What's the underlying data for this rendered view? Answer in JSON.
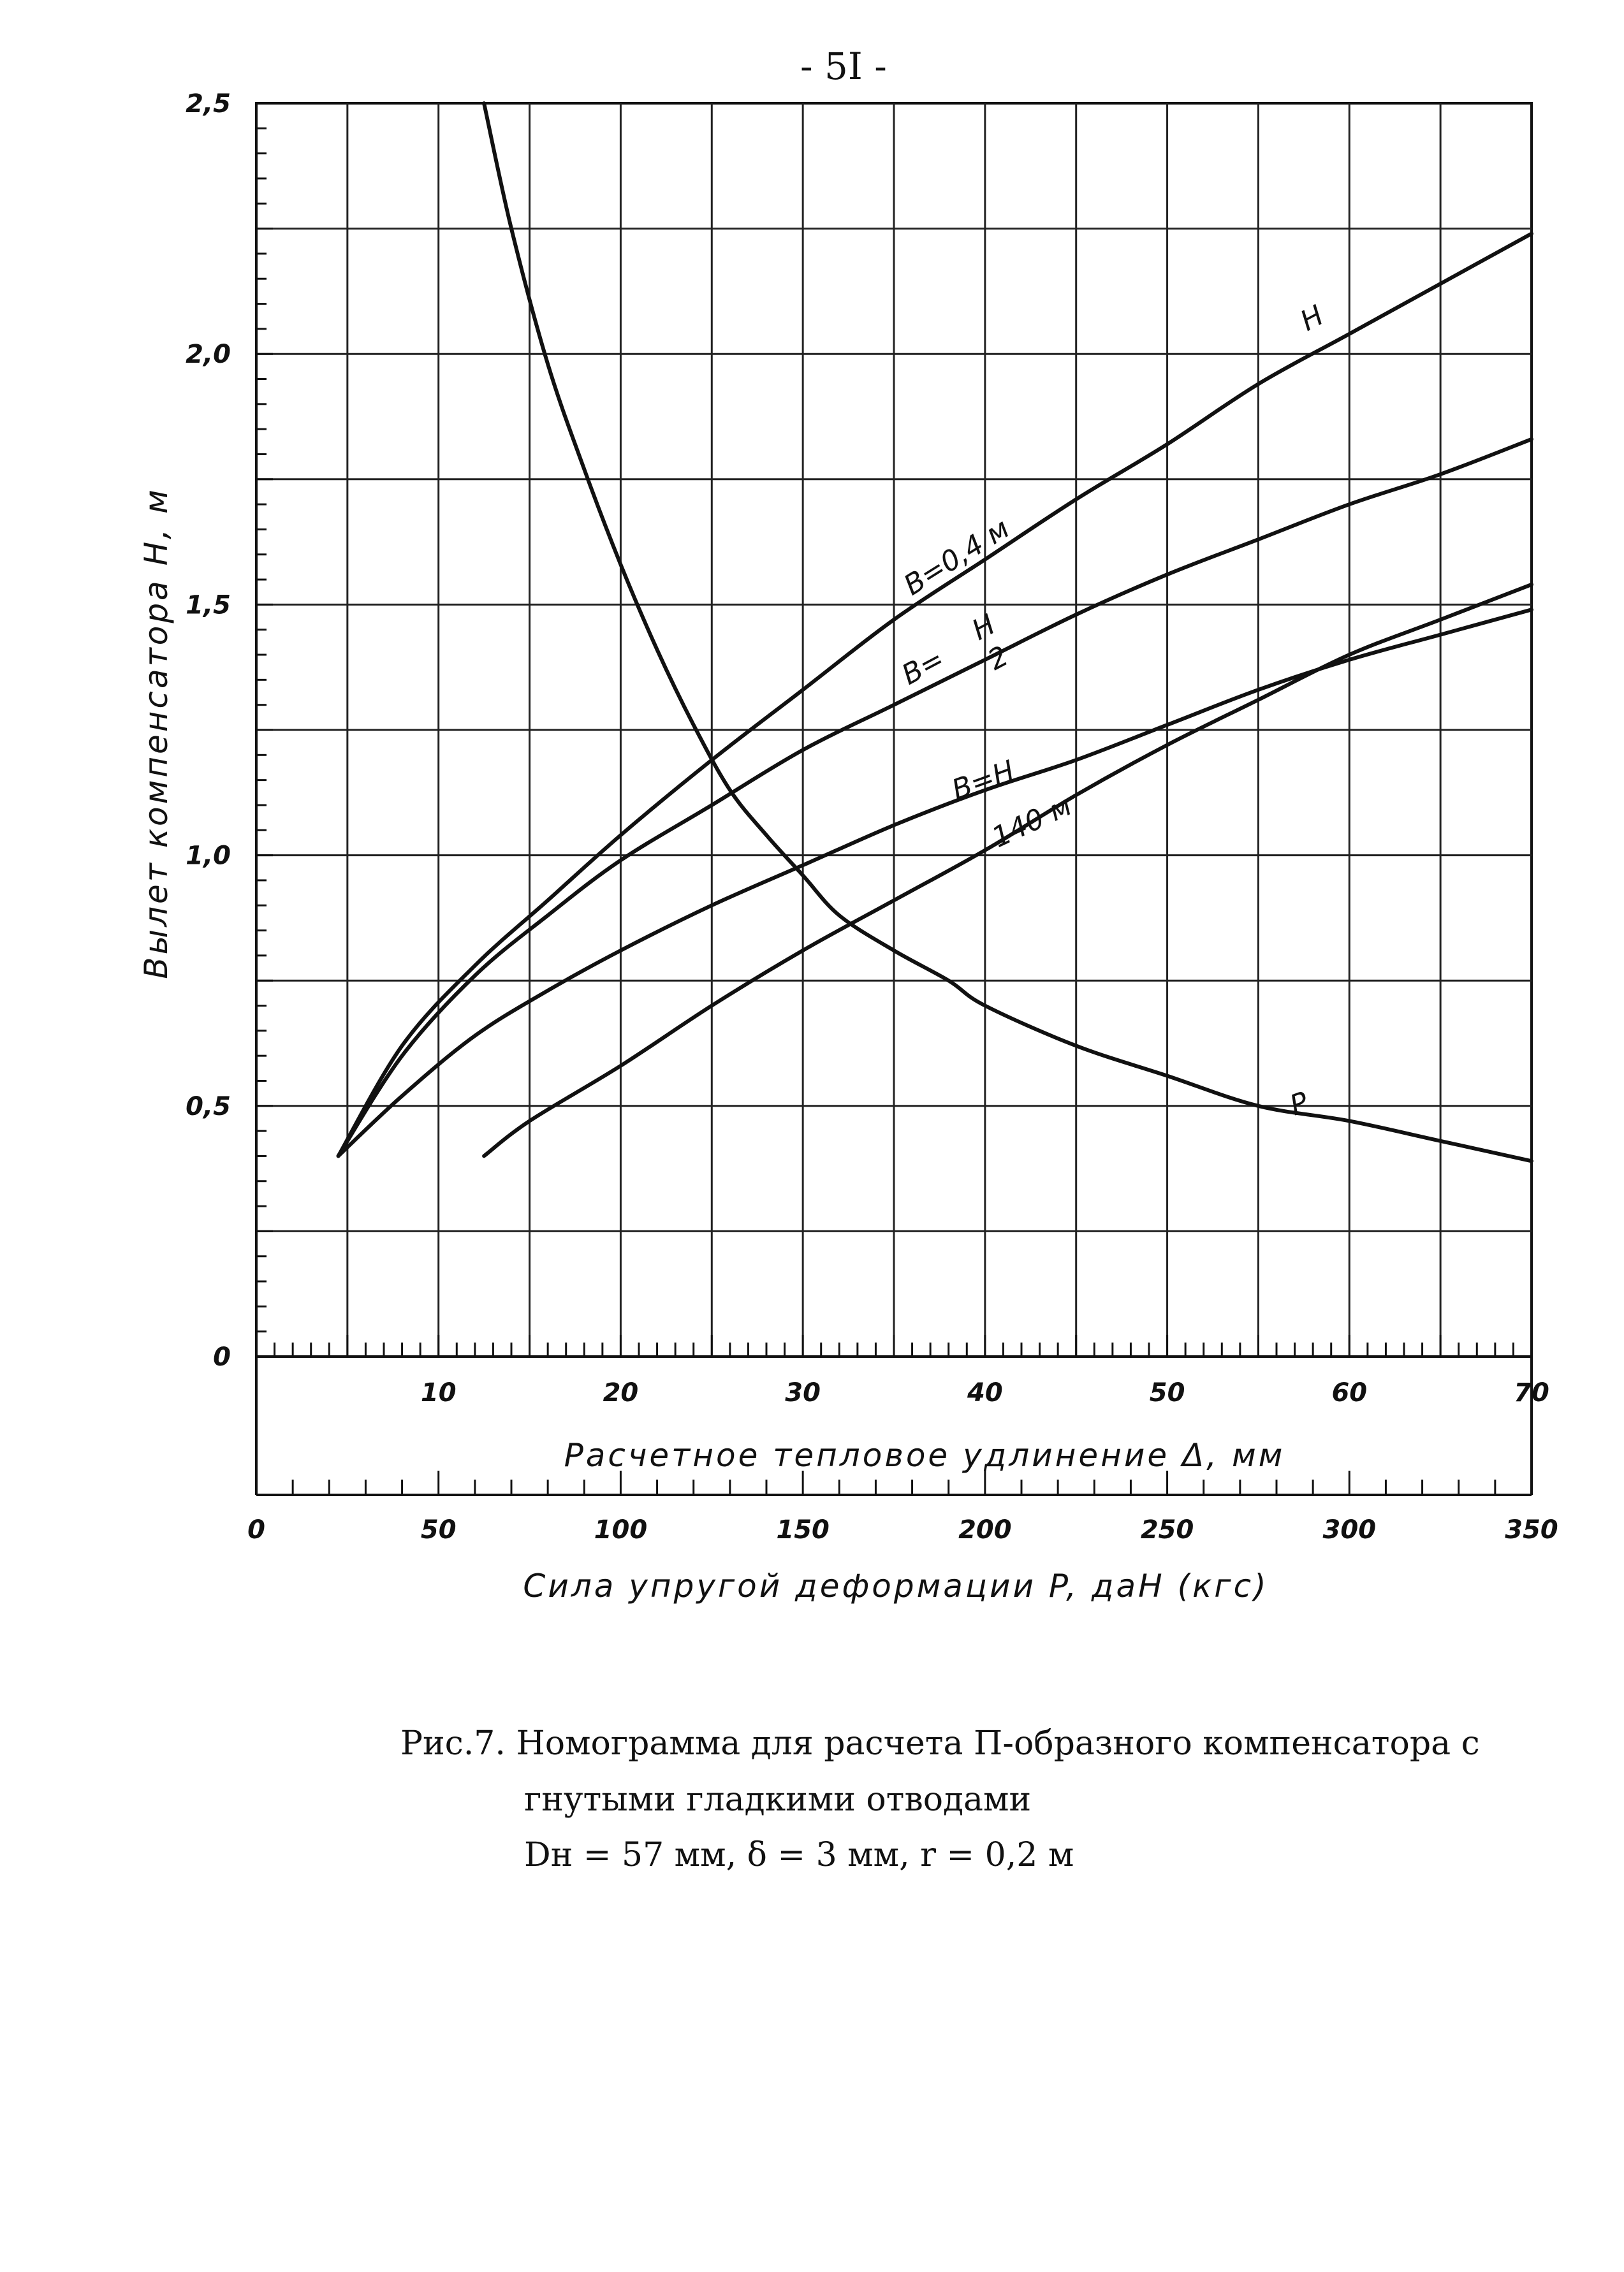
{
  "page_number": "- 5I -",
  "caption": {
    "line1": "Рис.7. Номограмма для расчета П-образного компенсатора с",
    "line2": "гнутыми гладкими отводами",
    "line3": "Dн = 57 мм,  δ = 3 мм,  r = 0,2 м"
  },
  "chart_data": {
    "type": "line",
    "ylabel": "Вылет компенсатора H, м",
    "xlabel": "Расчетное тепловое удлинение Δ, мм",
    "x2label": "Сила упругой деформации P, даН (кгс)",
    "ylim": [
      0,
      2.5
    ],
    "xlim": [
      0,
      70
    ],
    "x2lim": [
      0,
      350
    ],
    "yticks": [
      "0",
      "0,5",
      "1,0",
      "1,5",
      "2,0",
      "2,5"
    ],
    "ytick_values": [
      0,
      0.5,
      1.0,
      1.5,
      2.0,
      2.5
    ],
    "xticks": [
      "10",
      "20",
      "30",
      "40",
      "50",
      "60",
      "70"
    ],
    "xtick_values": [
      10,
      20,
      30,
      40,
      50,
      60,
      70
    ],
    "x2ticks": [
      "0",
      "50",
      "100",
      "150",
      "200",
      "250",
      "300",
      "350"
    ],
    "x2tick_values": [
      0,
      50,
      100,
      150,
      200,
      250,
      300,
      350
    ],
    "grid": true,
    "series": [
      {
        "name": "B=0,4 м",
        "axis": "delta",
        "x": [
          4.5,
          8,
          12,
          16,
          20,
          25,
          30,
          35,
          40,
          45,
          50,
          55,
          60,
          65,
          70
        ],
        "y": [
          0.4,
          0.62,
          0.78,
          0.91,
          1.04,
          1.19,
          1.33,
          1.47,
          1.59,
          1.71,
          1.82,
          1.94,
          2.04,
          2.14,
          2.24
        ]
      },
      {
        "name": "B=H/2",
        "axis": "delta",
        "x": [
          4.5,
          8,
          12,
          16,
          20,
          25,
          30,
          35,
          40,
          45,
          50,
          55,
          60,
          65,
          70
        ],
        "y": [
          0.4,
          0.6,
          0.76,
          0.88,
          0.99,
          1.1,
          1.21,
          1.3,
          1.39,
          1.48,
          1.56,
          1.63,
          1.7,
          1.76,
          1.83
        ]
      },
      {
        "name": "B=H",
        "axis": "delta",
        "x": [
          4.5,
          8,
          12,
          16,
          20,
          25,
          30,
          35,
          40,
          45,
          50,
          55,
          60,
          65,
          70
        ],
        "y": [
          0.4,
          0.52,
          0.64,
          0.73,
          0.81,
          0.9,
          0.98,
          1.06,
          1.13,
          1.19,
          1.26,
          1.33,
          1.39,
          1.44,
          1.49
        ]
      },
      {
        "name": "140 м",
        "axis": "delta",
        "x": [
          12.5,
          15,
          20,
          25,
          30,
          35,
          40,
          45,
          50,
          55,
          60,
          65,
          70
        ],
        "y": [
          0.4,
          0.47,
          0.58,
          0.7,
          0.81,
          0.91,
          1.01,
          1.12,
          1.22,
          1.31,
          1.4,
          1.47,
          1.54
        ]
      },
      {
        "name": "P",
        "axis": "force",
        "x": [
          62.5,
          70,
          80,
          90,
          100,
          110,
          120,
          130,
          140,
          150,
          160,
          175,
          190,
          200,
          225,
          250,
          275,
          300,
          325,
          350
        ],
        "y": [
          2.5,
          2.25,
          1.98,
          1.77,
          1.58,
          1.41,
          1.26,
          1.13,
          1.04,
          0.96,
          0.88,
          0.81,
          0.75,
          0.7,
          0.62,
          0.56,
          0.5,
          0.47,
          0.43,
          0.39
        ]
      }
    ],
    "curve_labels": {
      "H": "H",
      "P": "P",
      "b04": "B=0,4 м",
      "bh2_left": "B=",
      "bh2_num": "H",
      "bh2_den": "2",
      "bh": "B=H",
      "l140": "140 м"
    }
  }
}
